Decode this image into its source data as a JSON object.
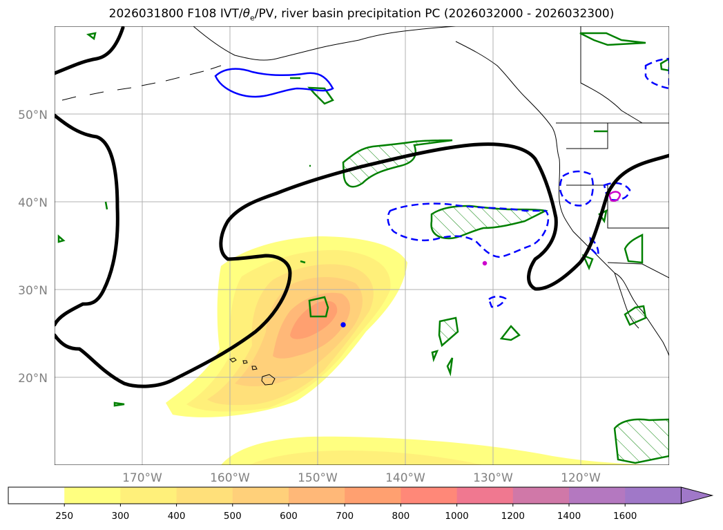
{
  "title": {
    "prefix": "2026031800 F108 IVT/",
    "theta_symbol": "θ",
    "theta_sub": "e",
    "suffix": "/PV, river basin precipitation PC (2026032000 - 2026032300)"
  },
  "axes": {
    "lat_labels": [
      "50°N",
      "40°N",
      "30°N",
      "20°N"
    ],
    "lon_labels": [
      "170°W",
      "160°W",
      "150°W",
      "140°W",
      "130°W",
      "120°W"
    ]
  },
  "colorbar": {
    "ticks": [
      "250",
      "300",
      "400",
      "500",
      "600",
      "700",
      "800",
      "1000",
      "1200",
      "1400",
      "1600"
    ],
    "colors": [
      "#ffffff",
      "#ffff80",
      "#fff07a",
      "#ffe07a",
      "#ffd07a",
      "#ffb878",
      "#ffa070",
      "#ff8878",
      "#f07890",
      "#d078a8",
      "#b478c0",
      "#a078c8"
    ]
  },
  "colors": {
    "ivt_contour_line": "#000000",
    "green_contour": "#008000",
    "blue_contour": "#0000ff",
    "magenta_contour": "#cc00cc",
    "grid": "#b0b0b0",
    "coastline": "#000000"
  }
}
